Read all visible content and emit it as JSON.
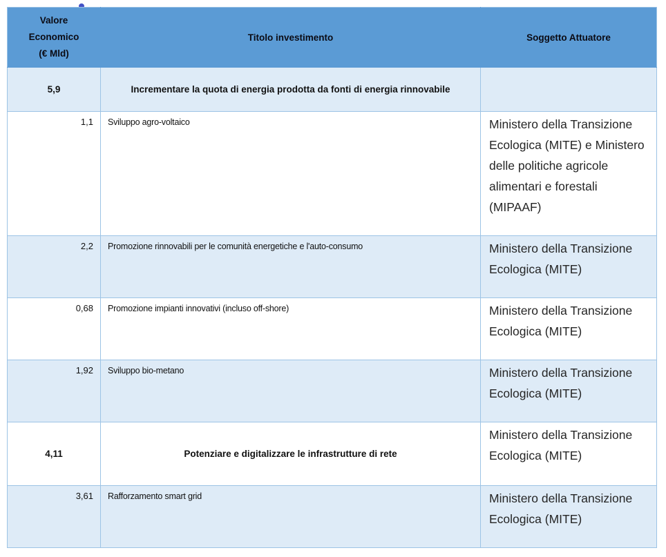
{
  "decorations": {
    "cursor_dot_color": "#4452C6"
  },
  "table": {
    "headers": [
      "Valore\nEconomico\n(€ Mld)",
      "Titolo investimento",
      "Soggetto Attuatore"
    ],
    "colors": {
      "header_bg": "#5B9BD5",
      "shaded_row_bg": "#DEEBF7",
      "plain_row_bg": "#FFFFFF",
      "border": "#9CC3E5"
    },
    "rows": [
      {
        "value": "5,9",
        "title": "Incrementare la quota di energia prodotta da fonti di energia rinnovabile",
        "actor": ""
      },
      {
        "value": "1,1",
        "title": "Sviluppo agro-voltaico",
        "actor": "Ministero della Transizione Ecologica (MITE) e Ministero delle politiche agricole alimentari e forestali (MIPAAF)"
      },
      {
        "value": "2,2",
        "title": "Promozione rinnovabili per le comunità energetiche e l'auto-consumo",
        "actor": "Ministero della Transizione Ecologica (MITE)"
      },
      {
        "value": "0,68",
        "title": "Promozione impianti innovativi (incluso off-shore)",
        "actor": "Ministero della Transizione Ecologica (MITE)"
      },
      {
        "value": "1,92",
        "title": "Sviluppo bio-metano",
        "actor": "Ministero della Transizione Ecologica (MITE)"
      },
      {
        "value": "4,11",
        "title": "Potenziare e digitalizzare le infrastrutture di rete",
        "actor": "Ministero della Transizione Ecologica (MITE)"
      },
      {
        "value": "3,61",
        "title": "Rafforzamento smart grid",
        "actor": "Ministero della Transizione Ecologica (MITE)"
      }
    ]
  }
}
